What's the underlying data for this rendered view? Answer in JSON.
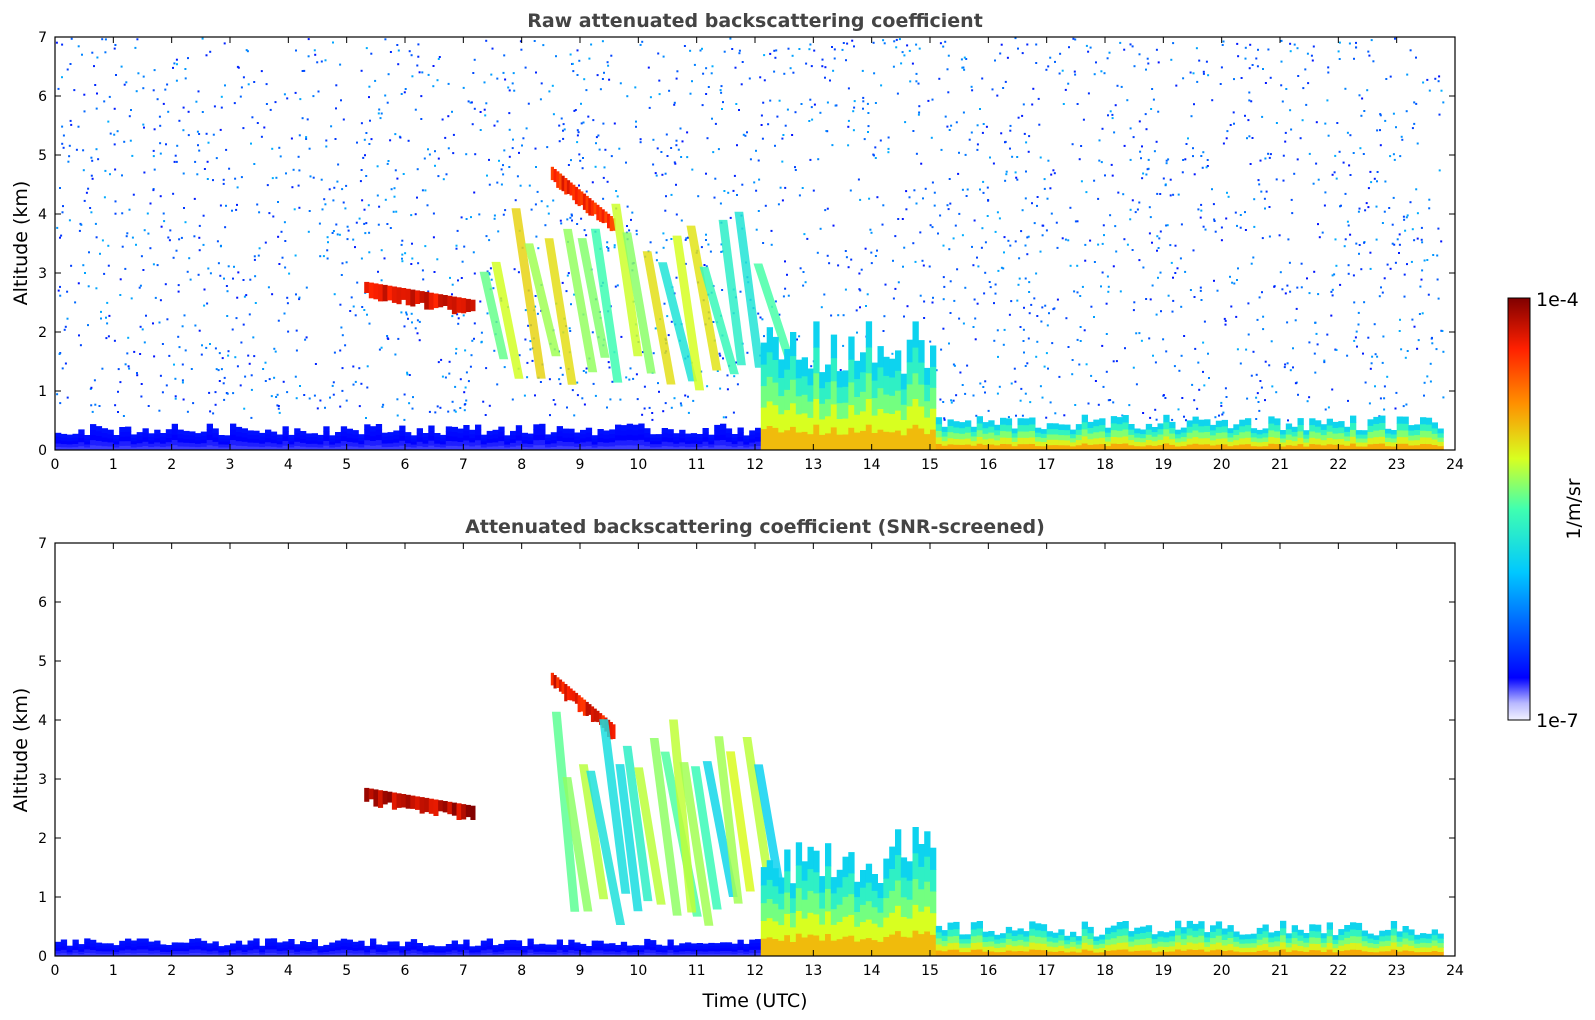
{
  "chart_data": [
    {
      "type": "heatmap",
      "title": "Raw attenuated backscattering coefficient",
      "xlabel": "",
      "ylabel": "Altitude (km)",
      "xlim": [
        0,
        24
      ],
      "ylim": [
        0,
        7
      ],
      "x_ticks": [
        "0",
        "1",
        "2",
        "3",
        "4",
        "5",
        "6",
        "7",
        "8",
        "9",
        "10",
        "11",
        "12",
        "13",
        "14",
        "15",
        "16",
        "17",
        "18",
        "19",
        "20",
        "21",
        "22",
        "23",
        "24"
      ],
      "y_ticks": [
        "0",
        "1",
        "2",
        "3",
        "4",
        "5",
        "6",
        "7"
      ],
      "features": [
        {
          "kind": "noise",
          "x": [
            0,
            23.8
          ],
          "y": [
            0.5,
            7
          ],
          "level": 0.12
        },
        {
          "kind": "boundary-layer",
          "x": [
            0,
            12.1
          ],
          "y": [
            0,
            0.45
          ],
          "level": 0.08
        },
        {
          "kind": "cloud-layer",
          "x": [
            5.3,
            7.2
          ],
          "y": [
            2.4,
            2.85
          ],
          "level": 0.95
        },
        {
          "kind": "cloud-layer",
          "x": [
            8.5,
            9.6
          ],
          "y": [
            3.5,
            4.8
          ],
          "level": 0.92
        },
        {
          "kind": "fall-streaks",
          "x": [
            7.2,
            12.1
          ],
          "y": [
            1.0,
            4.2
          ],
          "level": 0.55
        },
        {
          "kind": "aerosol-layer",
          "x": [
            12.1,
            15.1
          ],
          "y": [
            0,
            2.2
          ],
          "level": 0.7
        },
        {
          "kind": "aerosol-layer",
          "x": [
            15.1,
            23.8
          ],
          "y": [
            0,
            0.6
          ],
          "level": 0.72
        }
      ]
    },
    {
      "type": "heatmap",
      "title": "Attenuated backscattering coefficient (SNR-screened)",
      "xlabel": "Time (UTC)",
      "ylabel": "Altitude (km)",
      "xlim": [
        0,
        24
      ],
      "ylim": [
        0,
        7
      ],
      "x_ticks": [
        "0",
        "1",
        "2",
        "3",
        "4",
        "5",
        "6",
        "7",
        "8",
        "9",
        "10",
        "11",
        "12",
        "13",
        "14",
        "15",
        "16",
        "17",
        "18",
        "19",
        "20",
        "21",
        "22",
        "23",
        "24"
      ],
      "y_ticks": [
        "0",
        "1",
        "2",
        "3",
        "4",
        "5",
        "6",
        "7"
      ],
      "features": [
        {
          "kind": "boundary-layer",
          "x": [
            0,
            12.1
          ],
          "y": [
            0,
            0.3
          ],
          "level": 0.08
        },
        {
          "kind": "cloud-layer",
          "x": [
            5.3,
            7.2
          ],
          "y": [
            2.4,
            2.85
          ],
          "level": 1.0
        },
        {
          "kind": "cloud-layer",
          "x": [
            8.5,
            9.6
          ],
          "y": [
            3.5,
            4.8
          ],
          "level": 0.95
        },
        {
          "kind": "fall-streaks",
          "x": [
            8.5,
            12.1
          ],
          "y": [
            0.5,
            4.2
          ],
          "level": 0.5
        },
        {
          "kind": "aerosol-layer",
          "x": [
            12.1,
            15.1
          ],
          "y": [
            0,
            2.2
          ],
          "level": 0.7
        },
        {
          "kind": "aerosol-layer",
          "x": [
            15.1,
            23.8
          ],
          "y": [
            0,
            0.6
          ],
          "level": 0.72
        }
      ]
    }
  ],
  "colorbar": {
    "max_label": "1e-4",
    "min_label": "1e-7",
    "unit_label": "1/m/sr",
    "colormap": "jet"
  }
}
